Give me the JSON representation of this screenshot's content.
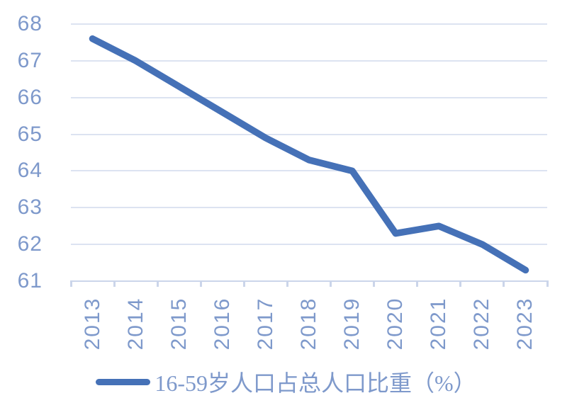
{
  "chart_data": {
    "type": "line",
    "title": "",
    "categories": [
      "2013",
      "2014",
      "2015",
      "2016",
      "2017",
      "2018",
      "2019",
      "2020",
      "2021",
      "2022",
      "2023"
    ],
    "series": [
      {
        "name": "16-59岁人口占总人口比重（%）",
        "values": [
          67.6,
          67.0,
          66.3,
          65.6,
          64.9,
          64.3,
          64.0,
          62.3,
          62.5,
          62.0,
          61.3
        ]
      }
    ],
    "xlabel": "",
    "ylabel": "",
    "ylim": [
      61,
      68
    ],
    "y_ticks": [
      61,
      62,
      63,
      64,
      65,
      66,
      67,
      68
    ],
    "grid": "horizontal",
    "legend_position": "bottom",
    "colors": {
      "line": "#4571B7",
      "tick_label": "#7E99CB",
      "gridline": "#DCE3F1",
      "axis": "#CBD5EA",
      "background": "#FFFFFF"
    }
  }
}
